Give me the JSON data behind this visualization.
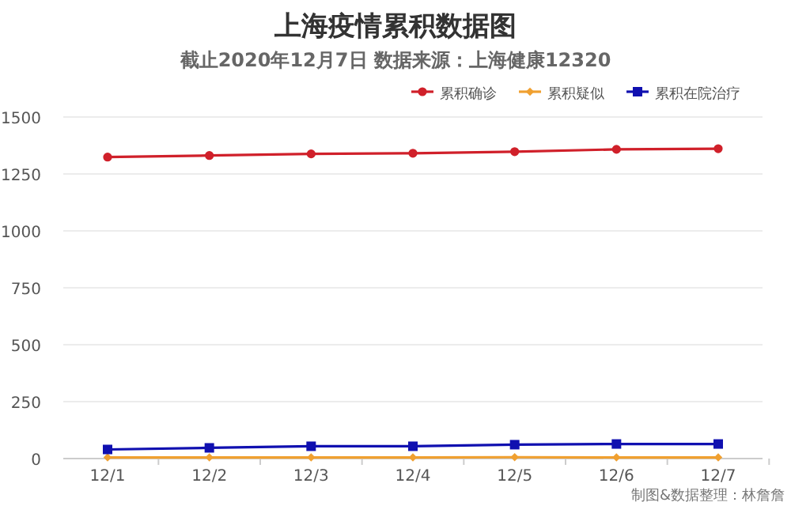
{
  "chart_data": {
    "type": "line",
    "title": "上海疫情累积数据图",
    "subtitle": "截止2020年12月7日 数据来源：上海健康12320",
    "categories": [
      "12/1",
      "12/2",
      "12/3",
      "12/4",
      "12/5",
      "12/6",
      "12/7"
    ],
    "series": [
      {
        "name": "累积确诊",
        "color": "#d0202a",
        "marker": "circle",
        "values": [
          1324,
          1331,
          1338,
          1341,
          1348,
          1358,
          1361
        ]
      },
      {
        "name": "累积疑似",
        "color": "#f0a030",
        "marker": "diamond",
        "values": [
          5,
          5,
          5,
          5,
          6,
          5,
          5
        ]
      },
      {
        "name": "累积在院治疗",
        "color": "#1010b0",
        "marker": "square",
        "values": [
          40,
          47,
          54,
          54,
          61,
          64,
          64
        ]
      }
    ],
    "ylim": [
      0,
      1500
    ],
    "yticks": [
      0,
      250,
      500,
      750,
      1000,
      1250,
      1500
    ],
    "grid": "y",
    "legend": "top right",
    "annotations": [
      "制图&数据整理：林詹詹"
    ]
  }
}
